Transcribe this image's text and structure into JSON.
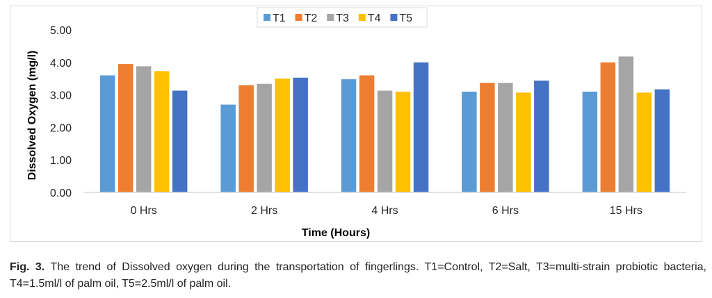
{
  "chart_data": {
    "type": "bar",
    "categories": [
      "0 Hrs",
      "2 Hrs",
      "4 Hrs",
      "6 Hrs",
      "15 Hrs"
    ],
    "series": [
      {
        "name": "T1",
        "color": "#5b9bd5",
        "values": [
          3.6,
          2.7,
          3.48,
          3.1,
          3.1
        ]
      },
      {
        "name": "T2",
        "color": "#ed7d31",
        "values": [
          3.95,
          3.3,
          3.6,
          3.37,
          4.0
        ]
      },
      {
        "name": "T3",
        "color": "#a5a5a5",
        "values": [
          3.88,
          3.34,
          3.13,
          3.37,
          4.18
        ]
      },
      {
        "name": "T4",
        "color": "#ffc000",
        "values": [
          3.73,
          3.5,
          3.1,
          3.07,
          3.07
        ]
      },
      {
        "name": "T5",
        "color": "#4472c4",
        "values": [
          3.13,
          3.53,
          4.0,
          3.44,
          3.17
        ]
      }
    ],
    "yticks": [
      "0.00",
      "1.00",
      "2.00",
      "3.00",
      "4.00",
      "5.00"
    ],
    "ylim": [
      0,
      5
    ],
    "xlabel": "Time (Hours)",
    "ylabel": "Dissolved Oxygen (mg/l)",
    "legend_position": "top-center",
    "grid": false
  },
  "caption": {
    "label": "Fig. 3.",
    "text": "The trend of Dissolved oxygen during the transportation of fingerlings. T1=Control, T2=Salt, T3=multi-strain probiotic bacteria, T4=1.5ml/l of palm oil, T5=2.5ml/l of palm oil."
  }
}
